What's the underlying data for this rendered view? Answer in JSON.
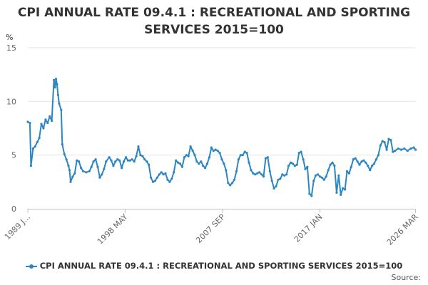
{
  "chart_data": {
    "type": "line",
    "title_line1": "CPI ANNUAL RATE 09.4.1 : RECREATIONAL AND SPORTING",
    "title_line2": "SERVICES 2015=100",
    "ylabel": "%",
    "xlabel": "",
    "ylim": [
      0,
      15
    ],
    "yticks": [
      0,
      5,
      10,
      15
    ],
    "xlim": [
      1989.0,
      2026.2
    ],
    "xtick_labels": [
      {
        "label": "1989 J...",
        "x": 1989.0
      },
      {
        "label": "1998 MAY",
        "x": 1998.33
      },
      {
        "label": "2007 SEP",
        "x": 2007.67
      },
      {
        "label": "2017 JAN",
        "x": 2017.0
      },
      {
        "label": "2026 MAR",
        "x": 2026.17
      }
    ],
    "grid": true,
    "legend_position": "bottom",
    "series": [
      {
        "name": "CPI ANNUAL RATE 09.4.1 : RECREATIONAL AND SPORTING SERVICES 2015=100",
        "color": "#2e86c1",
        "points": [
          [
            1989.0,
            8.1
          ],
          [
            1989.2,
            8.0
          ],
          [
            1989.3,
            4.0
          ],
          [
            1989.5,
            5.6
          ],
          [
            1989.7,
            5.8
          ],
          [
            1989.9,
            6.2
          ],
          [
            1990.1,
            6.6
          ],
          [
            1990.3,
            7.9
          ],
          [
            1990.5,
            7.5
          ],
          [
            1990.7,
            8.3
          ],
          [
            1990.9,
            8.0
          ],
          [
            1991.1,
            8.6
          ],
          [
            1991.3,
            8.2
          ],
          [
            1991.5,
            12.0
          ],
          [
            1991.6,
            11.3
          ],
          [
            1991.7,
            12.1
          ],
          [
            1991.8,
            11.6
          ],
          [
            1991.9,
            10.6
          ],
          [
            1992.0,
            9.8
          ],
          [
            1992.2,
            9.2
          ],
          [
            1992.3,
            6.0
          ],
          [
            1992.5,
            5.1
          ],
          [
            1992.7,
            4.6
          ],
          [
            1992.9,
            4.0
          ],
          [
            1993.0,
            3.6
          ],
          [
            1993.1,
            2.5
          ],
          [
            1993.3,
            3.0
          ],
          [
            1993.5,
            3.3
          ],
          [
            1993.7,
            4.5
          ],
          [
            1993.9,
            4.4
          ],
          [
            1994.1,
            3.8
          ],
          [
            1994.3,
            3.5
          ],
          [
            1994.6,
            3.4
          ],
          [
            1994.9,
            3.5
          ],
          [
            1995.1,
            3.9
          ],
          [
            1995.3,
            4.4
          ],
          [
            1995.5,
            4.6
          ],
          [
            1995.7,
            3.9
          ],
          [
            1995.9,
            2.9
          ],
          [
            1996.1,
            3.2
          ],
          [
            1996.3,
            3.7
          ],
          [
            1996.5,
            4.4
          ],
          [
            1996.8,
            4.8
          ],
          [
            1997.0,
            4.5
          ],
          [
            1997.2,
            4.0
          ],
          [
            1997.4,
            4.4
          ],
          [
            1997.6,
            4.6
          ],
          [
            1997.8,
            4.5
          ],
          [
            1998.0,
            3.8
          ],
          [
            1998.2,
            4.4
          ],
          [
            1998.4,
            4.8
          ],
          [
            1998.6,
            4.5
          ],
          [
            1998.8,
            4.5
          ],
          [
            1999.0,
            4.6
          ],
          [
            1999.2,
            4.4
          ],
          [
            1999.4,
            4.9
          ],
          [
            1999.6,
            5.8
          ],
          [
            1999.8,
            5.0
          ],
          [
            2000.0,
            4.9
          ],
          [
            2000.2,
            4.6
          ],
          [
            2000.4,
            4.4
          ],
          [
            2000.6,
            4.1
          ],
          [
            2000.8,
            2.9
          ],
          [
            2001.0,
            2.5
          ],
          [
            2001.2,
            2.6
          ],
          [
            2001.4,
            2.9
          ],
          [
            2001.6,
            3.2
          ],
          [
            2001.8,
            3.4
          ],
          [
            2002.0,
            3.2
          ],
          [
            2002.2,
            3.3
          ],
          [
            2002.4,
            2.7
          ],
          [
            2002.6,
            2.5
          ],
          [
            2002.8,
            2.8
          ],
          [
            2003.0,
            3.4
          ],
          [
            2003.2,
            4.5
          ],
          [
            2003.4,
            4.3
          ],
          [
            2003.6,
            4.2
          ],
          [
            2003.8,
            3.9
          ],
          [
            2004.0,
            4.8
          ],
          [
            2004.2,
            5.0
          ],
          [
            2004.4,
            4.9
          ],
          [
            2004.6,
            5.8
          ],
          [
            2004.8,
            5.4
          ],
          [
            2005.0,
            5.0
          ],
          [
            2005.2,
            4.4
          ],
          [
            2005.4,
            4.2
          ],
          [
            2005.6,
            4.4
          ],
          [
            2005.8,
            4.0
          ],
          [
            2006.0,
            3.8
          ],
          [
            2006.2,
            4.2
          ],
          [
            2006.4,
            4.8
          ],
          [
            2006.6,
            5.7
          ],
          [
            2006.8,
            5.4
          ],
          [
            2007.0,
            5.5
          ],
          [
            2007.2,
            5.4
          ],
          [
            2007.4,
            5.2
          ],
          [
            2007.6,
            4.6
          ],
          [
            2007.8,
            4.2
          ],
          [
            2008.0,
            3.6
          ],
          [
            2008.2,
            2.4
          ],
          [
            2008.4,
            2.2
          ],
          [
            2008.6,
            2.4
          ],
          [
            2008.8,
            2.7
          ],
          [
            2009.0,
            3.5
          ],
          [
            2009.2,
            4.6
          ],
          [
            2009.4,
            5.0
          ],
          [
            2009.6,
            5.0
          ],
          [
            2009.8,
            5.3
          ],
          [
            2010.0,
            5.2
          ],
          [
            2010.2,
            4.3
          ],
          [
            2010.4,
            3.6
          ],
          [
            2010.6,
            3.3
          ],
          [
            2010.8,
            3.2
          ],
          [
            2011.0,
            3.3
          ],
          [
            2011.2,
            3.4
          ],
          [
            2011.4,
            3.2
          ],
          [
            2011.6,
            3.0
          ],
          [
            2011.8,
            4.7
          ],
          [
            2012.0,
            4.8
          ],
          [
            2012.2,
            3.5
          ],
          [
            2012.4,
            2.6
          ],
          [
            2012.6,
            1.9
          ],
          [
            2012.8,
            2.1
          ],
          [
            2013.0,
            2.7
          ],
          [
            2013.2,
            2.8
          ],
          [
            2013.4,
            3.2
          ],
          [
            2013.6,
            3.1
          ],
          [
            2013.8,
            3.2
          ],
          [
            2014.0,
            4.0
          ],
          [
            2014.2,
            4.3
          ],
          [
            2014.4,
            4.2
          ],
          [
            2014.6,
            4.0
          ],
          [
            2014.8,
            4.1
          ],
          [
            2015.0,
            5.2
          ],
          [
            2015.2,
            5.3
          ],
          [
            2015.4,
            4.6
          ],
          [
            2015.6,
            3.7
          ],
          [
            2015.8,
            3.9
          ],
          [
            2016.0,
            1.4
          ],
          [
            2016.2,
            1.2
          ],
          [
            2016.4,
            2.6
          ],
          [
            2016.6,
            3.1
          ],
          [
            2016.8,
            3.2
          ],
          [
            2017.0,
            3.0
          ],
          [
            2017.2,
            2.9
          ],
          [
            2017.4,
            2.7
          ],
          [
            2017.6,
            3.0
          ],
          [
            2017.8,
            3.6
          ],
          [
            2018.0,
            4.1
          ],
          [
            2018.2,
            4.3
          ],
          [
            2018.4,
            4.0
          ],
          [
            2018.6,
            1.5
          ],
          [
            2018.8,
            3.1
          ],
          [
            2019.0,
            1.3
          ],
          [
            2019.2,
            1.9
          ],
          [
            2019.4,
            1.8
          ],
          [
            2019.6,
            3.5
          ],
          [
            2019.8,
            3.3
          ],
          [
            2020.0,
            3.9
          ],
          [
            2020.2,
            4.6
          ],
          [
            2020.4,
            4.7
          ],
          [
            2020.6,
            4.4
          ],
          [
            2020.8,
            4.1
          ],
          [
            2021.0,
            4.4
          ],
          [
            2021.2,
            4.5
          ],
          [
            2021.4,
            4.3
          ],
          [
            2021.6,
            4.0
          ],
          [
            2021.8,
            3.6
          ],
          [
            2022.0,
            4.0
          ],
          [
            2022.2,
            4.2
          ],
          [
            2022.4,
            4.6
          ],
          [
            2022.6,
            5.0
          ],
          [
            2022.8,
            5.9
          ],
          [
            2023.0,
            6.3
          ],
          [
            2023.2,
            6.2
          ],
          [
            2023.4,
            5.5
          ],
          [
            2023.6,
            6.5
          ],
          [
            2023.8,
            6.4
          ],
          [
            2024.0,
            5.3
          ],
          [
            2024.2,
            5.4
          ],
          [
            2024.5,
            5.6
          ],
          [
            2024.8,
            5.5
          ],
          [
            2025.1,
            5.6
          ],
          [
            2025.4,
            5.4
          ],
          [
            2025.7,
            5.6
          ],
          [
            2026.0,
            5.7
          ],
          [
            2026.17,
            5.5
          ]
        ]
      }
    ]
  },
  "legend": {
    "label": "CPI ANNUAL RATE 09.4.1 : RECREATIONAL AND SPORTING SERVICES 2015=100"
  },
  "source_text": "Source:"
}
